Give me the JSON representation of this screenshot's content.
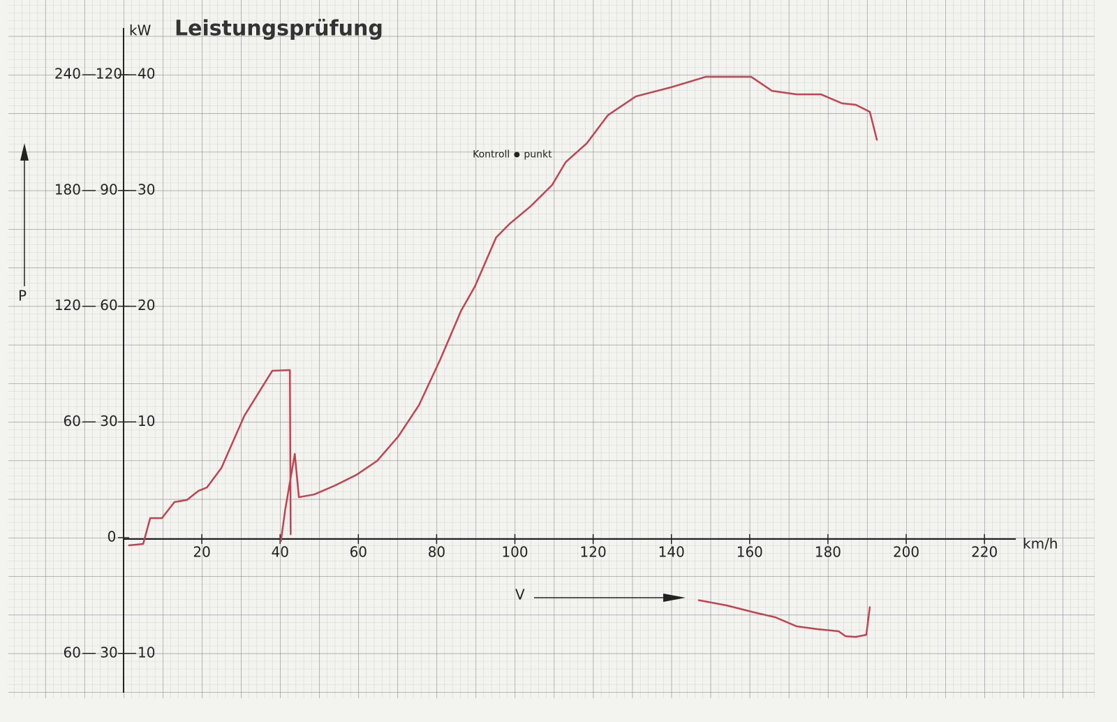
{
  "chart_data": {
    "type": "line",
    "title": "Leistungsprüfung",
    "y_unit_label": "kW",
    "y_axis_label": "P",
    "x_axis_label": "V",
    "x_unit_label": "km/h",
    "xlim": [
      0,
      228
    ],
    "xticks": [
      20,
      40,
      60,
      80,
      100,
      120,
      140,
      160,
      180,
      200,
      220
    ],
    "ylim": [
      -13.27,
      46.46
    ],
    "yticks": [
      40,
      30,
      20,
      10,
      0,
      {
        "value": -10,
        "label": "10"
      }
    ],
    "ylim_2": [
      -39.81,
      139.38
    ],
    "yticks_2": [
      120,
      90,
      60,
      30,
      {
        "value": -30,
        "label": "30"
      }
    ],
    "ylim_3": [
      -79.62,
      278.76
    ],
    "yticks_3": [
      240,
      180,
      120,
      60,
      {
        "value": -60,
        "label": "60"
      }
    ],
    "control_point": {
      "label_left": "Kontroll",
      "label_right": "punkt",
      "x": 100.5,
      "y": 33.1
    },
    "series": [
      {
        "color": "#c2424f",
        "x": [
          1.4,
          5.0,
          6.8,
          9.8,
          13.0,
          16.2,
          19.1,
          21.3,
          25.0,
          30.9,
          38.0,
          42.5,
          42.7,
          null,
          40.2,
          41.3,
          43.75,
          44.8,
          48.75,
          54.1,
          59.5,
          64.8,
          70.2,
          75.5,
          80.9,
          86.25,
          89.8,
          95.2,
          98.75,
          104.1,
          109.5,
          113.0,
          118.4,
          123.75,
          130.9,
          139.8,
          148.75,
          160.4,
          165.7,
          172.0,
          178.2,
          183.6,
          187.1,
          190.7,
          192.5
        ],
        "values": [
          -0.66,
          -0.54,
          1.69,
          1.69,
          3.08,
          3.26,
          4.04,
          4.34,
          6.03,
          10.56,
          14.42,
          14.48,
          0.3,
          null,
          -0.3,
          2.41,
          7.24,
          3.5,
          3.74,
          4.52,
          5.43,
          6.64,
          8.75,
          11.46,
          15.38,
          19.61,
          21.72,
          25.94,
          27.15,
          28.66,
          30.47,
          32.46,
          34.09,
          36.5,
          38.13,
          38.91,
          39.82,
          39.82,
          38.61,
          38.31,
          38.31,
          37.53,
          37.41,
          36.8,
          34.39
        ]
      },
      {
        "color": "#c2424f",
        "x": [
          147.0,
          154.1,
          161.25,
          166.6,
          172.0,
          177.3,
          182.7,
          184.5,
          187.1,
          189.8,
          190.7
        ],
        "values": [
          -5.4,
          -5.85,
          -6.46,
          -6.88,
          -7.66,
          -7.9,
          -8.08,
          -8.51,
          -8.57,
          -8.39,
          -6.0
        ]
      }
    ]
  }
}
